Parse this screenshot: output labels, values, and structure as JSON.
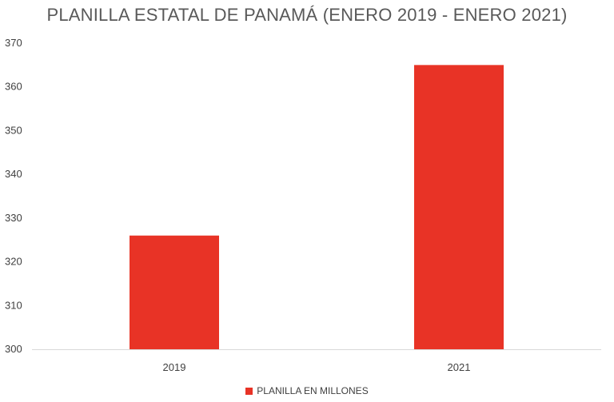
{
  "chart_data": {
    "type": "bar",
    "title": "PLANILLA ESTATAL DE PANAMÁ (ENERO 2019 -  ENERO 2021)",
    "categories": [
      "2019",
      "2021"
    ],
    "series": [
      {
        "name": "PLANILLA EN MILLONES",
        "values": [
          326,
          365
        ],
        "color": "#E83326"
      }
    ],
    "ylim": [
      300,
      370
    ],
    "yticks": [
      "300",
      "310",
      "320",
      "330",
      "340",
      "350",
      "360",
      "370"
    ],
    "xlabel": "",
    "ylabel": "",
    "grid": false,
    "legend_position": "bottom"
  }
}
